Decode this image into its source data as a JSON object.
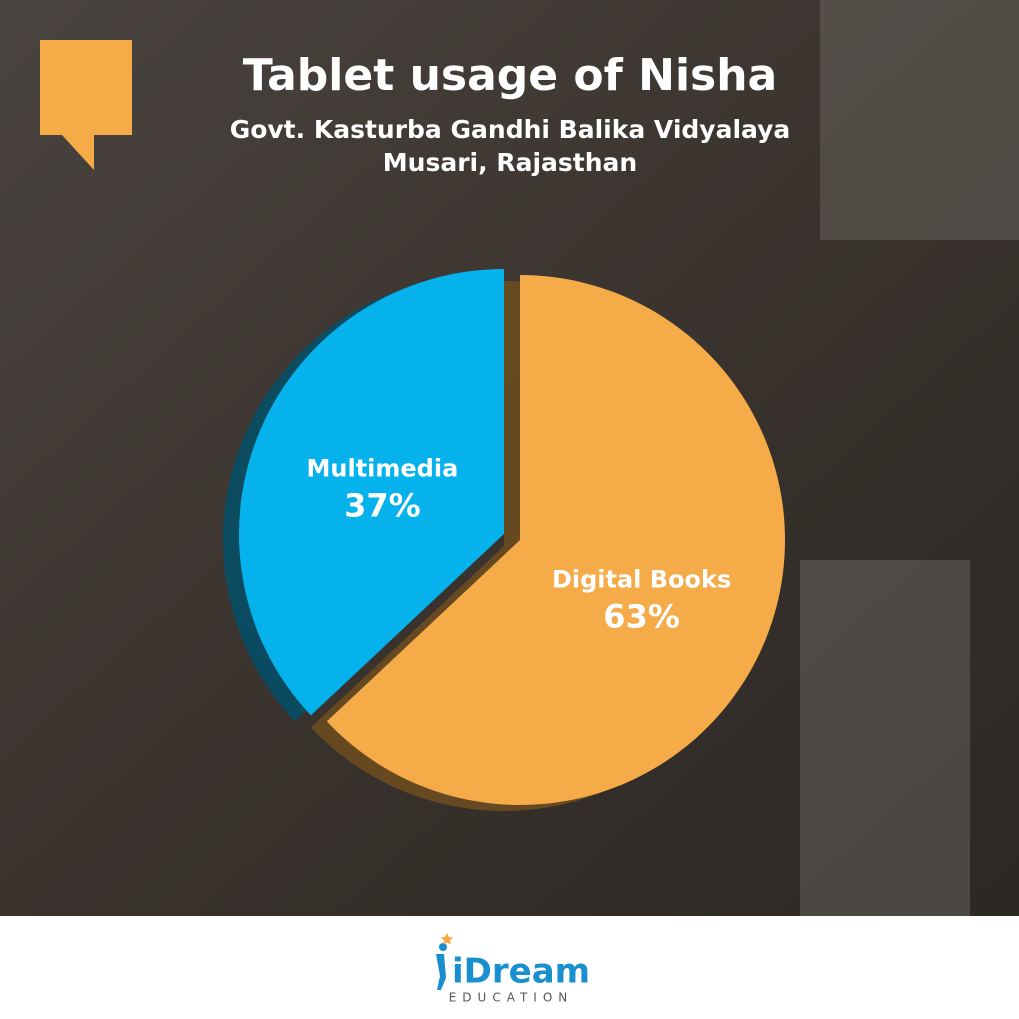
{
  "chart_data": {
    "type": "pie",
    "title": "Tablet usage of Nisha",
    "subtitle": [
      "Govt. Kasturba Gandhi Balika Vidyalaya",
      "Musari, Rajasthan"
    ],
    "categories": [
      "Digital Books",
      "Multimedia"
    ],
    "values": [
      63,
      37
    ],
    "value_labels": [
      "63%",
      "37%"
    ],
    "colors": [
      "#f5ab48",
      "#05b2ec"
    ]
  },
  "footer": {
    "logo": "iDream",
    "tagline": "EDUCATION"
  }
}
